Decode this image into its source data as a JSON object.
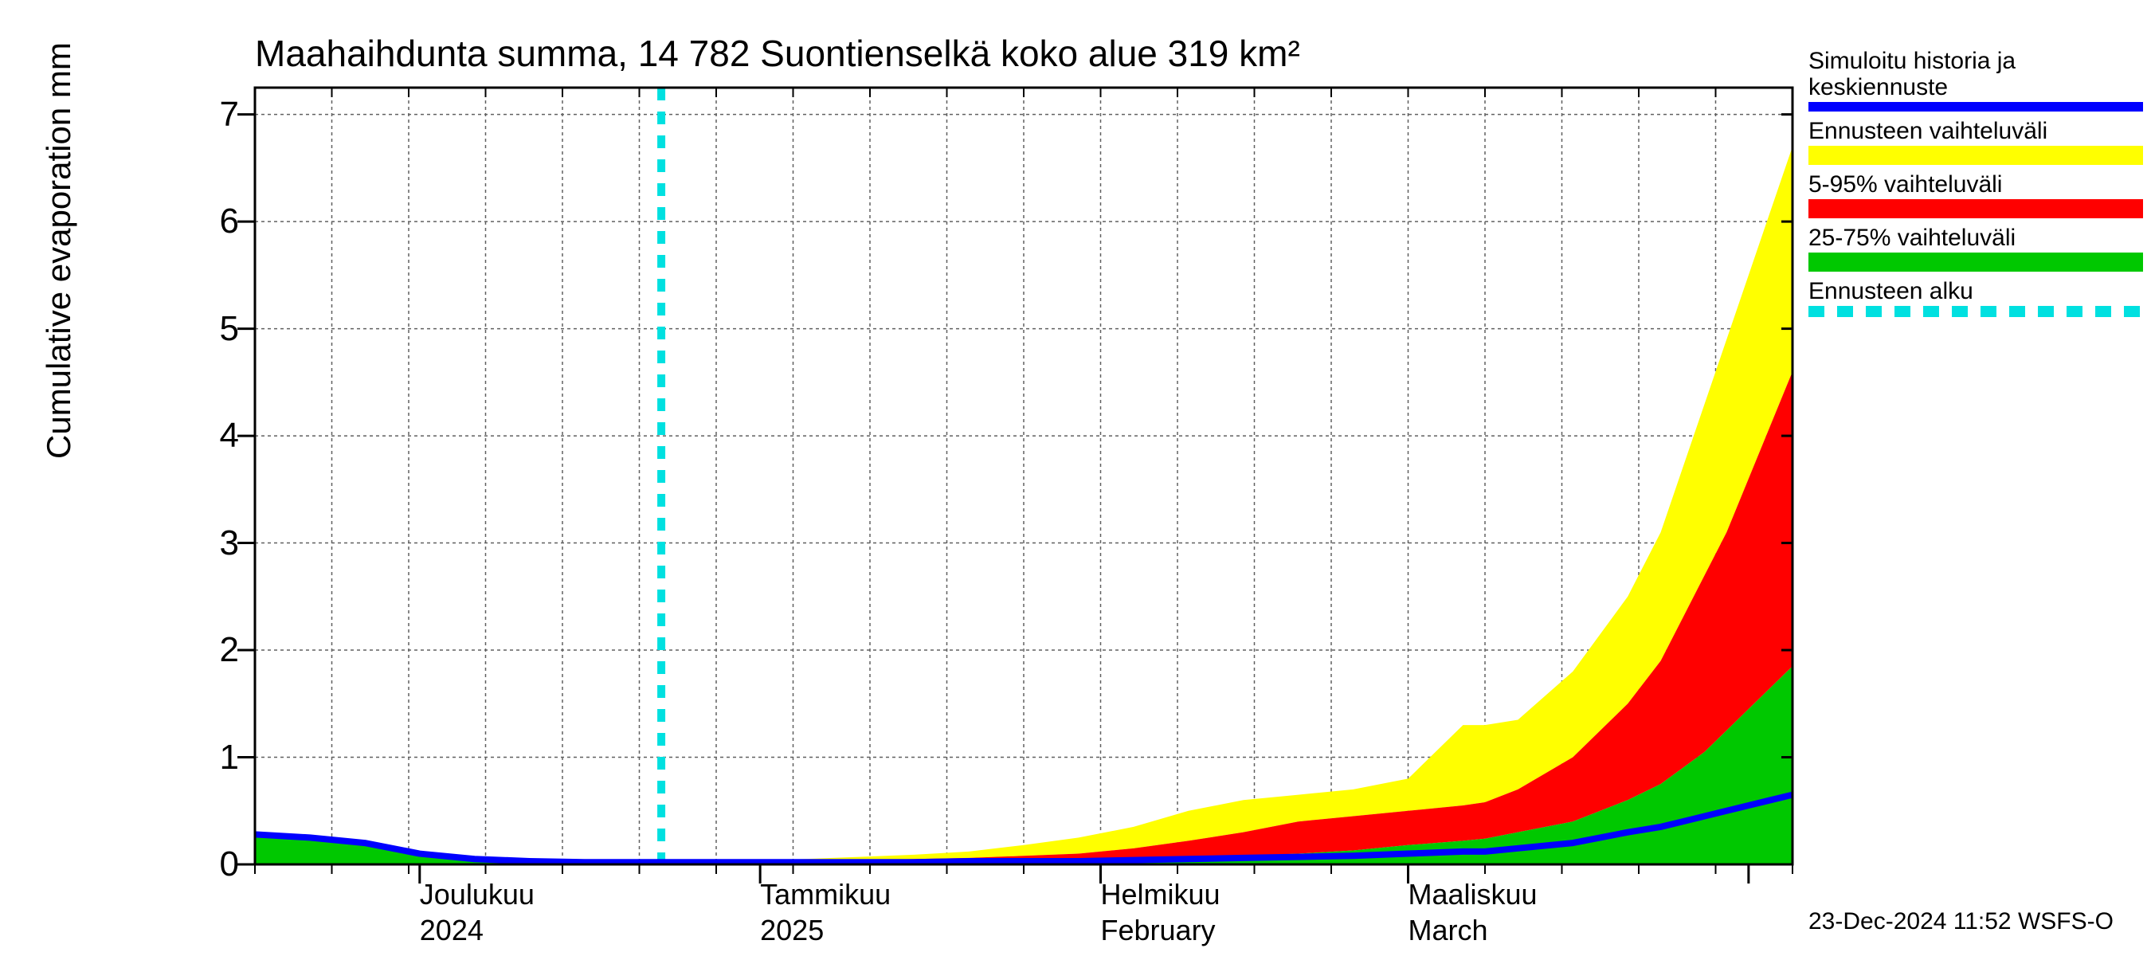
{
  "chart": {
    "type": "area-forecast",
    "title": "Maahaihdunta summa, 14 782 Suontienselkä koko alue 319 km²",
    "ylabel": "Cumulative evaporation   mm",
    "background_color": "#ffffff",
    "grid_color": "#606060",
    "grid_dash": "4,4",
    "axis_color": "#000000",
    "title_fontsize": 46,
    "label_fontsize": 42,
    "tick_fontsize": 44,
    "x_axis": {
      "range_days": 140,
      "weekly_minor_ticks": [
        0,
        7,
        14,
        21,
        28,
        35,
        42,
        49,
        56,
        63,
        70,
        77,
        84,
        91,
        98,
        105,
        112,
        119,
        126,
        133,
        140
      ],
      "month_boundaries": [
        15,
        46,
        77,
        105,
        136
      ],
      "labels": [
        {
          "pos_day": 15,
          "line1": "Joulukuu",
          "line2": "2024"
        },
        {
          "pos_day": 46,
          "line1": "Tammikuu",
          "line2": "2025"
        },
        {
          "pos_day": 77,
          "line1": "Helmikuu",
          "line2": "February"
        },
        {
          "pos_day": 105,
          "line1": "Maaliskuu",
          "line2": "March"
        }
      ]
    },
    "y_axis": {
      "ylim": [
        0,
        7.25
      ],
      "yticks": [
        0,
        1,
        2,
        3,
        4,
        5,
        6,
        7
      ]
    },
    "forecast_day": 37,
    "series": {
      "x_days": [
        0,
        5,
        10,
        15,
        20,
        25,
        30,
        35,
        37,
        40,
        45,
        50,
        55,
        60,
        65,
        70,
        75,
        80,
        85,
        90,
        95,
        100,
        105,
        110,
        112,
        115,
        120,
        125,
        128,
        130,
        132,
        134,
        136,
        138,
        140
      ],
      "blue_line": {
        "color": "#0000ff",
        "width": 8,
        "y": [
          0.28,
          0.25,
          0.2,
          0.1,
          0.05,
          0.03,
          0.02,
          0.02,
          0.02,
          0.02,
          0.02,
          0.02,
          0.02,
          0.02,
          0.03,
          0.03,
          0.03,
          0.04,
          0.05,
          0.06,
          0.07,
          0.08,
          0.1,
          0.12,
          0.12,
          0.15,
          0.2,
          0.3,
          0.35,
          0.4,
          0.45,
          0.5,
          0.55,
          0.6,
          0.65
        ]
      },
      "green_band": {
        "color": "#00c800",
        "lo": [
          0,
          0,
          0,
          0,
          0,
          0,
          0,
          0,
          0,
          0,
          0,
          0,
          0,
          0,
          0,
          0,
          0,
          0,
          0,
          0,
          0,
          0,
          0,
          0,
          0,
          0,
          0,
          0,
          0,
          0,
          0,
          0,
          0,
          0,
          0
        ],
        "hi": [
          0.28,
          0.25,
          0.2,
          0.1,
          0.05,
          0.03,
          0.02,
          0.02,
          0.02,
          0.02,
          0.02,
          0.02,
          0.02,
          0.02,
          0.03,
          0.03,
          0.03,
          0.05,
          0.06,
          0.08,
          0.1,
          0.13,
          0.18,
          0.22,
          0.24,
          0.3,
          0.4,
          0.6,
          0.75,
          0.9,
          1.05,
          1.25,
          1.45,
          1.65,
          1.85
        ]
      },
      "red_band": {
        "color": "#ff0000",
        "lo": [
          0.28,
          0.25,
          0.2,
          0.1,
          0.05,
          0.03,
          0.02,
          0.02,
          0.02,
          0.02,
          0.02,
          0.02,
          0.02,
          0.02,
          0.03,
          0.03,
          0.03,
          0.05,
          0.06,
          0.08,
          0.1,
          0.13,
          0.18,
          0.22,
          0.24,
          0.3,
          0.4,
          0.6,
          0.75,
          0.9,
          1.05,
          1.25,
          1.45,
          1.65,
          1.85
        ],
        "hi": [
          0.28,
          0.25,
          0.2,
          0.1,
          0.05,
          0.03,
          0.02,
          0.02,
          0.02,
          0.02,
          0.02,
          0.03,
          0.04,
          0.05,
          0.06,
          0.08,
          0.1,
          0.15,
          0.22,
          0.3,
          0.4,
          0.45,
          0.5,
          0.55,
          0.58,
          0.7,
          1.0,
          1.5,
          1.9,
          2.3,
          2.7,
          3.1,
          3.6,
          4.1,
          4.6
        ]
      },
      "yellow_band": {
        "color": "#ffff00",
        "lo": [
          0.28,
          0.25,
          0.2,
          0.1,
          0.05,
          0.03,
          0.02,
          0.02,
          0.02,
          0.02,
          0.02,
          0.03,
          0.04,
          0.05,
          0.06,
          0.08,
          0.1,
          0.15,
          0.22,
          0.3,
          0.4,
          0.45,
          0.5,
          0.55,
          0.58,
          0.7,
          1.0,
          1.5,
          1.9,
          2.3,
          2.7,
          3.1,
          3.6,
          4.1,
          4.6
        ],
        "hi": [
          0.28,
          0.25,
          0.2,
          0.1,
          0.05,
          0.03,
          0.02,
          0.02,
          0.02,
          0.02,
          0.03,
          0.05,
          0.07,
          0.09,
          0.12,
          0.18,
          0.25,
          0.35,
          0.5,
          0.6,
          0.65,
          0.7,
          0.8,
          1.3,
          1.3,
          1.35,
          1.8,
          2.5,
          3.1,
          3.7,
          4.3,
          4.9,
          5.5,
          6.1,
          6.7
        ]
      }
    },
    "forecast_line": {
      "color": "#00e0e0",
      "width": 10,
      "dash": "16,14"
    }
  },
  "legend": {
    "items": [
      {
        "label": "Simuloitu historia ja keskiennuste",
        "type": "line",
        "color": "#0000ff"
      },
      {
        "label": "Ennusteen vaihteluväli",
        "type": "fill",
        "color": "#ffff00"
      },
      {
        "label": "5-95% vaihteluväli",
        "type": "fill",
        "color": "#ff0000"
      },
      {
        "label": "25-75% vaihteluväli",
        "type": "fill",
        "color": "#00c800"
      },
      {
        "label": "Ennusteen alku",
        "type": "dash",
        "color": "#00e0e0"
      }
    ]
  },
  "footer": "23-Dec-2024 11:52 WSFS-O"
}
